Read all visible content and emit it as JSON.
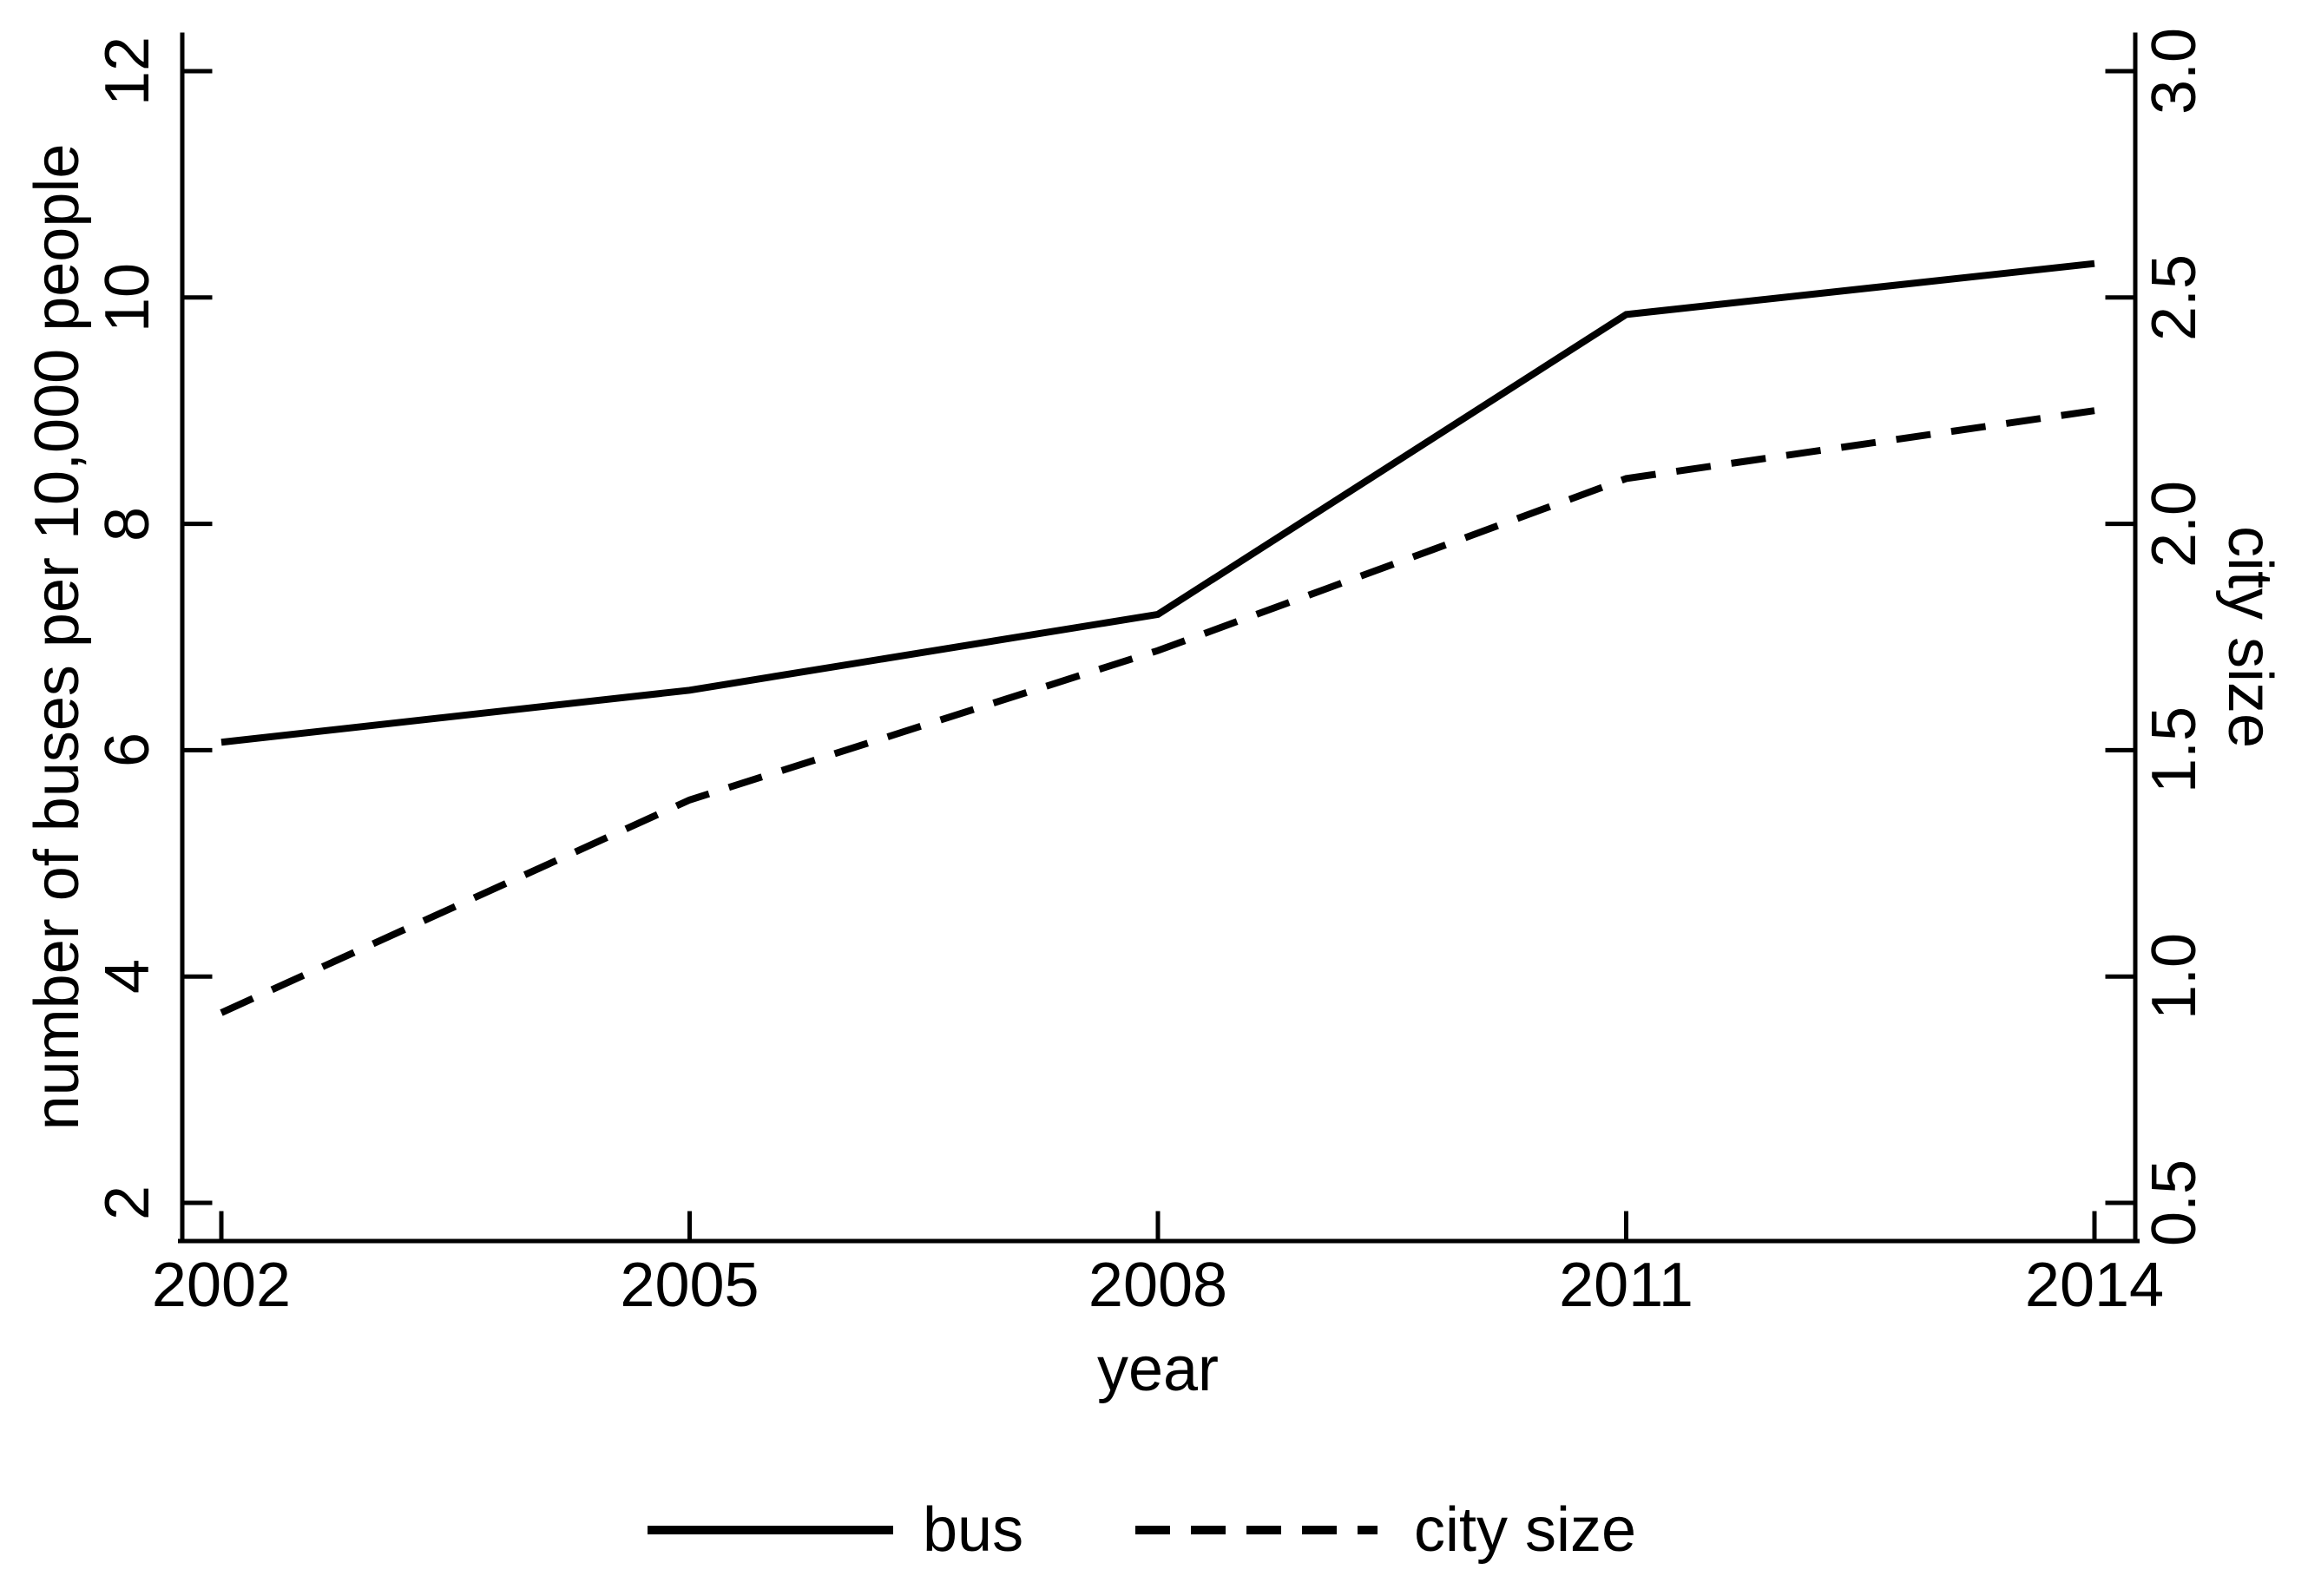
{
  "colors": {
    "foreground": "#000000",
    "background": "#ffffff"
  },
  "chart_data": {
    "type": "line",
    "x": [
      2002,
      2005,
      2008,
      2011,
      2014
    ],
    "x_tick_labels": [
      "2002",
      "2005",
      "2008",
      "2011",
      "2014"
    ],
    "xlabel": "year",
    "left_axis": {
      "label": "number of buses per 10,000 people",
      "tick_labels": [
        "2",
        "4",
        "6",
        "8",
        "10",
        "12"
      ],
      "range": [
        2,
        12
      ]
    },
    "right_axis": {
      "label": "city size",
      "tick_labels": [
        "0.5",
        "1.0",
        "1.5",
        "2.0",
        "2.5",
        "3.0"
      ],
      "range": [
        0.5,
        3.0
      ]
    },
    "series": [
      {
        "name": "bus",
        "axis": "left",
        "style": "solid",
        "color": "#000000",
        "values": [
          6.07,
          6.53,
          7.2,
          9.85,
          10.3
        ]
      },
      {
        "name": "city size",
        "axis": "right",
        "style": "dashed",
        "color": "#000000",
        "values": [
          0.92,
          1.39,
          1.72,
          2.1,
          2.25
        ]
      }
    ],
    "legend": {
      "position": "bottom",
      "entries": [
        "bus",
        "city size"
      ]
    },
    "grid": "off"
  }
}
